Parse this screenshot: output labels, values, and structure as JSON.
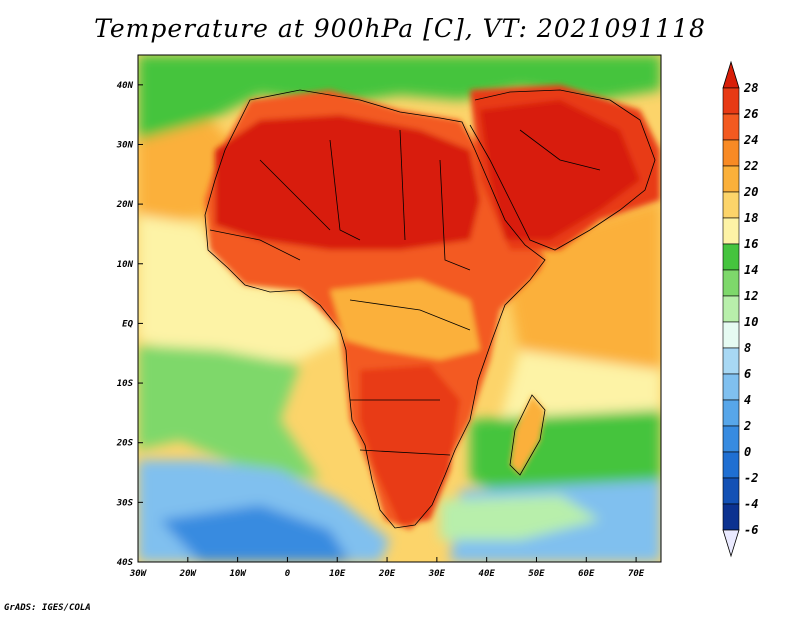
{
  "title": "Temperature at 900hPa [C], VT: 2021091118",
  "footer": "GrADS: IGES/COLA",
  "map": {
    "projection": "lat-lon",
    "lon_range": [
      -30,
      75
    ],
    "lat_range": [
      -40,
      45
    ],
    "x_ticks": [
      {
        "value": -30,
        "label": "30W"
      },
      {
        "value": -20,
        "label": "20W"
      },
      {
        "value": -10,
        "label": "10W"
      },
      {
        "value": 0,
        "label": "0"
      },
      {
        "value": 10,
        "label": "10E"
      },
      {
        "value": 20,
        "label": "20E"
      },
      {
        "value": 30,
        "label": "30E"
      },
      {
        "value": 40,
        "label": "40E"
      },
      {
        "value": 50,
        "label": "50E"
      },
      {
        "value": 60,
        "label": "60E"
      },
      {
        "value": 70,
        "label": "70E"
      }
    ],
    "y_ticks": [
      {
        "value": 40,
        "label": "40N"
      },
      {
        "value": 30,
        "label": "30N"
      },
      {
        "value": 20,
        "label": "20N"
      },
      {
        "value": 10,
        "label": "10N"
      },
      {
        "value": 0,
        "label": "EQ"
      },
      {
        "value": -10,
        "label": "10S"
      },
      {
        "value": -20,
        "label": "20S"
      },
      {
        "value": -30,
        "label": "30S"
      },
      {
        "value": -40,
        "label": "40S"
      }
    ]
  },
  "colorbar": {
    "labels": [
      "28",
      "26",
      "24",
      "22",
      "20",
      "18",
      "16",
      "14",
      "12",
      "10",
      "8",
      "6",
      "4",
      "2",
      "0",
      "-2",
      "-4",
      "-6"
    ],
    "colors": [
      "#e83a14",
      "#f35a20",
      "#f88a24",
      "#fbb03a",
      "#fcd46a",
      "#fdf3a6",
      "#45c43e",
      "#7ed86b",
      "#b8efab",
      "#e6fbf2",
      "#a8d8f4",
      "#80c0ef",
      "#57a6e9",
      "#378be0",
      "#1f6fd2",
      "#1351b5",
      "#0c3290",
      "#06185c"
    ],
    "top_color": "#d81e08",
    "bottom_color": "#eaeaff"
  },
  "colors": {
    "ocean_warm": "#fbb03a",
    "ocean_mild": "#fdf3a6",
    "ocean_green": "#7ed86b",
    "ocean_cold": "#57a6e9",
    "land_hot": "#d81e08",
    "land_warm": "#f35a20",
    "border": "#000000"
  }
}
